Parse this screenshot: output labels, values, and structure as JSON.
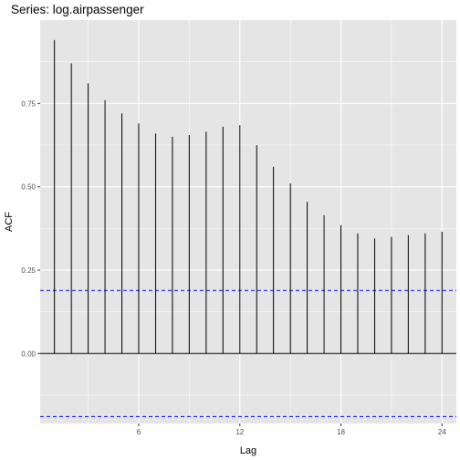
{
  "chart_data": {
    "type": "bar",
    "title": "Series: log.airpassenger",
    "xlabel": "Lag",
    "ylabel": "ACF",
    "x": [
      1,
      2,
      3,
      4,
      5,
      6,
      7,
      8,
      9,
      10,
      11,
      12,
      13,
      14,
      15,
      16,
      17,
      18,
      19,
      20,
      21,
      22,
      23,
      24
    ],
    "values": [
      0.94,
      0.87,
      0.81,
      0.76,
      0.72,
      0.69,
      0.66,
      0.65,
      0.655,
      0.665,
      0.68,
      0.685,
      0.625,
      0.56,
      0.51,
      0.455,
      0.415,
      0.385,
      0.36,
      0.345,
      0.35,
      0.355,
      0.36,
      0.365
    ],
    "xlim": [
      0.15,
      24.85
    ],
    "ylim": [
      -0.21,
      1.0
    ],
    "x_ticks": [
      6,
      12,
      18,
      24
    ],
    "x_tick_labels": [
      "6",
      "12",
      "18",
      "24"
    ],
    "y_ticks": [
      0.0,
      0.25,
      0.5,
      0.75
    ],
    "y_tick_labels": [
      "0.00",
      "0.25",
      "0.50",
      "0.75"
    ],
    "confidence_band": [
      0.189,
      -0.189
    ],
    "zero_line": 0,
    "grid": true,
    "colors": {
      "panel": "#e5e5e5",
      "grid": "#ffffff",
      "bar": "#000000",
      "confidence": "#0000ff"
    }
  }
}
